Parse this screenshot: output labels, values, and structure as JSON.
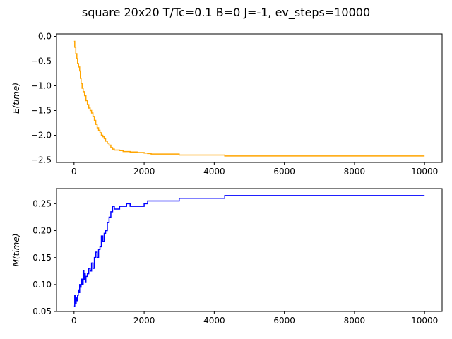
{
  "title": "square 20x20 T/Tc=0.1 B=0 J=-1, ev_steps=10000",
  "chart_data": [
    {
      "type": "line",
      "ylabel": "E(time)",
      "xlim": [
        -500,
        10500
      ],
      "ylim": [
        -2.55,
        0.05
      ],
      "xticks": [
        0,
        2000,
        4000,
        6000,
        8000,
        10000
      ],
      "xtick_labels": [
        "0",
        "2000",
        "4000",
        "6000",
        "8000",
        "10000"
      ],
      "yticks": [
        0.0,
        -0.5,
        -1.0,
        -1.5,
        -2.0,
        -2.5
      ],
      "ytick_labels": [
        "0.0",
        "−0.5",
        "−1.0",
        "−1.5",
        "−2.0",
        "−2.5"
      ],
      "grid": false,
      "series": [
        {
          "color": "#ffa500",
          "step": true,
          "x": [
            0,
            20,
            50,
            80,
            100,
            130,
            160,
            180,
            200,
            230,
            260,
            300,
            340,
            380,
            420,
            460,
            500,
            540,
            580,
            620,
            660,
            700,
            740,
            780,
            820,
            860,
            900,
            950,
            1000,
            1050,
            1100,
            1150,
            1200,
            1300,
            1400,
            1500,
            1600,
            1800,
            2000,
            2100,
            2200,
            2600,
            3000,
            3500,
            4000,
            4300,
            5000,
            6000,
            7000,
            8000,
            9000,
            10000
          ],
          "y": [
            -0.1,
            -0.22,
            -0.35,
            -0.45,
            -0.55,
            -0.62,
            -0.7,
            -0.85,
            -0.95,
            -1.05,
            -1.12,
            -1.2,
            -1.3,
            -1.38,
            -1.45,
            -1.5,
            -1.55,
            -1.62,
            -1.7,
            -1.78,
            -1.85,
            -1.9,
            -1.95,
            -2.0,
            -2.03,
            -2.07,
            -2.12,
            -2.16,
            -2.2,
            -2.25,
            -2.28,
            -2.3,
            -2.3,
            -2.31,
            -2.33,
            -2.33,
            -2.34,
            -2.35,
            -2.36,
            -2.37,
            -2.38,
            -2.38,
            -2.4,
            -2.4,
            -2.4,
            -2.42,
            -2.42,
            -2.42,
            -2.42,
            -2.42,
            -2.42,
            -2.42
          ]
        }
      ]
    },
    {
      "type": "line",
      "ylabel": "M(time)",
      "xlim": [
        -500,
        10500
      ],
      "ylim": [
        0.05,
        0.278
      ],
      "xticks": [
        0,
        2000,
        4000,
        6000,
        8000,
        10000
      ],
      "xtick_labels": [
        "0",
        "2000",
        "4000",
        "6000",
        "8000",
        "10000"
      ],
      "yticks": [
        0.05,
        0.1,
        0.15,
        0.2,
        0.25
      ],
      "ytick_labels": [
        "0.05",
        "0.10",
        "0.15",
        "0.20",
        "0.25"
      ],
      "grid": false,
      "series": [
        {
          "color": "#0000ff",
          "step": true,
          "x": [
            0,
            20,
            40,
            60,
            80,
            100,
            120,
            140,
            160,
            180,
            200,
            220,
            240,
            260,
            280,
            300,
            320,
            340,
            380,
            420,
            460,
            500,
            540,
            580,
            620,
            660,
            700,
            740,
            780,
            820,
            860,
            900,
            950,
            1000,
            1050,
            1100,
            1150,
            1200,
            1300,
            1400,
            1500,
            1600,
            1700,
            1800,
            1900,
            2000,
            2100,
            2200,
            2500,
            3000,
            3500,
            4000,
            4300,
            5000,
            6000,
            7000,
            8000,
            9000,
            10000
          ],
          "y": [
            0.06,
            0.08,
            0.065,
            0.075,
            0.07,
            0.08,
            0.09,
            0.085,
            0.1,
            0.095,
            0.1,
            0.11,
            0.1,
            0.125,
            0.11,
            0.12,
            0.105,
            0.115,
            0.12,
            0.13,
            0.125,
            0.14,
            0.13,
            0.15,
            0.16,
            0.15,
            0.165,
            0.17,
            0.19,
            0.18,
            0.195,
            0.2,
            0.215,
            0.225,
            0.235,
            0.245,
            0.24,
            0.24,
            0.245,
            0.245,
            0.25,
            0.245,
            0.245,
            0.245,
            0.245,
            0.25,
            0.255,
            0.255,
            0.255,
            0.26,
            0.26,
            0.26,
            0.265,
            0.265,
            0.265,
            0.265,
            0.265,
            0.265,
            0.265
          ]
        }
      ]
    }
  ]
}
